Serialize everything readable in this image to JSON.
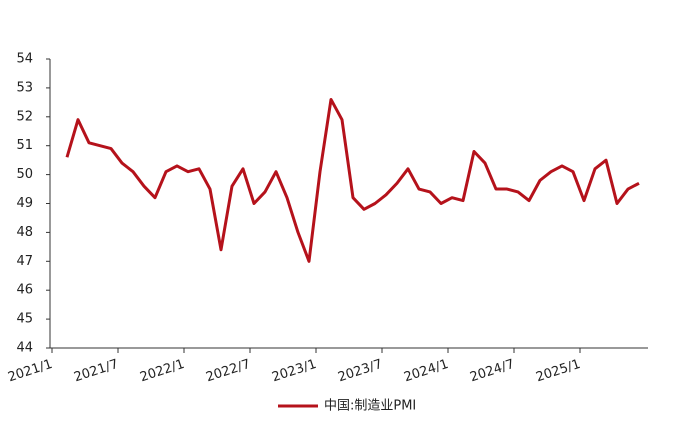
{
  "chart_data": {
    "type": "line",
    "categories": [
      "2021/1",
      null,
      null,
      null,
      null,
      null,
      "2021/7",
      null,
      null,
      null,
      null,
      null,
      "2022/1",
      null,
      null,
      null,
      null,
      null,
      "2022/7",
      null,
      null,
      null,
      null,
      null,
      "2023/1",
      null,
      null,
      null,
      null,
      null,
      "2023/7",
      null,
      null,
      null,
      null,
      null,
      "2024/1",
      null,
      null,
      null,
      null,
      null,
      "2024/7",
      null,
      null,
      null,
      null,
      null,
      "2025/1",
      null,
      null,
      null,
      null,
      null
    ],
    "series": [
      {
        "name": "中国:制造业PMI",
        "color": "#b5121b",
        "values": [
          null,
          50.6,
          51.9,
          51.1,
          51.0,
          50.9,
          50.4,
          50.1,
          49.6,
          49.2,
          50.1,
          50.3,
          50.1,
          50.2,
          49.5,
          47.4,
          49.6,
          50.2,
          49.0,
          49.4,
          50.1,
          49.2,
          48.0,
          47.0,
          50.1,
          52.6,
          51.9,
          49.2,
          48.8,
          49.0,
          49.3,
          49.7,
          50.2,
          49.5,
          49.4,
          49.0,
          49.2,
          49.1,
          50.8,
          50.4,
          49.5,
          49.5,
          49.4,
          49.1,
          49.8,
          50.1,
          50.3,
          50.1,
          49.1,
          50.2,
          50.5,
          49.0,
          49.5,
          49.7
        ]
      }
    ],
    "ylim": [
      44,
      54
    ],
    "yticks": [
      44,
      45,
      46,
      47,
      48,
      49,
      50,
      51,
      52,
      53,
      54
    ]
  }
}
